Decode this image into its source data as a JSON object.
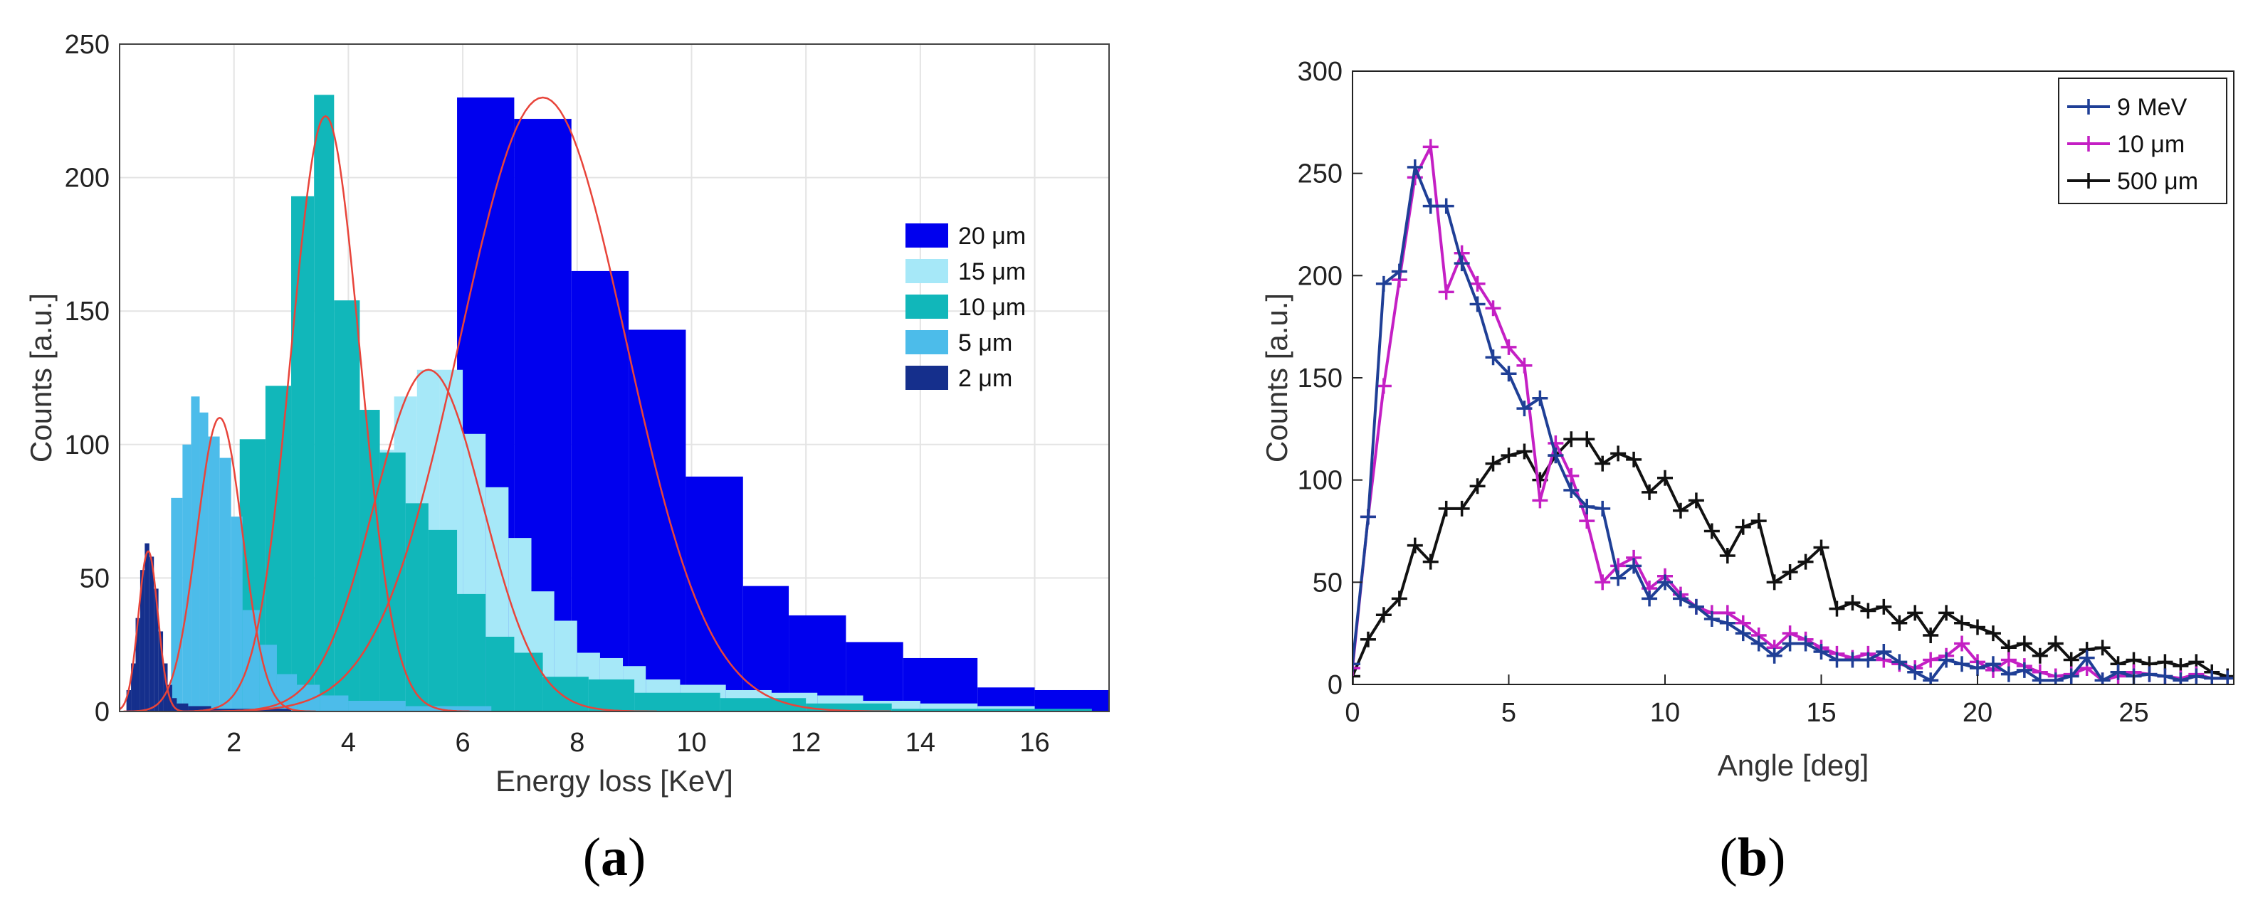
{
  "panels": [
    {
      "label_open": "(",
      "label_letter": "a",
      "label_close": ")"
    },
    {
      "label_open": "(",
      "label_letter": "b",
      "label_close": ")"
    }
  ],
  "chart_data": [
    {
      "type": "bar",
      "subtype": "overlapping step histograms with gaussian fits",
      "xlabel": "Energy loss [KeV]",
      "ylabel": "Counts [a.u.]",
      "xlim": [
        0,
        17.3
      ],
      "ylim": [
        0,
        250
      ],
      "xticks": [
        2,
        4,
        6,
        8,
        10,
        12,
        14,
        16
      ],
      "yticks": [
        0,
        50,
        100,
        150,
        200,
        250
      ],
      "grid": true,
      "legend_position": "right",
      "fit_color": "#e8443a",
      "series": [
        {
          "name": "20 μm",
          "color": "#0000ee",
          "bins": [
            [
              5.9,
              6.9,
              230
            ],
            [
              6.9,
              7.9,
              222
            ],
            [
              7.9,
              8.9,
              165
            ],
            [
              8.9,
              9.9,
              143
            ],
            [
              9.9,
              10.9,
              88
            ],
            [
              10.9,
              11.7,
              47
            ],
            [
              11.7,
              12.7,
              36
            ],
            [
              12.7,
              13.7,
              26
            ],
            [
              13.7,
              15.0,
              20
            ],
            [
              15.0,
              16.0,
              9
            ],
            [
              16.0,
              17.3,
              8
            ]
          ],
          "fit": {
            "mu": 7.4,
            "sigma": 1.45,
            "amp": 230
          }
        },
        {
          "name": "15 μm",
          "color": "#a6e8f8",
          "bins": [
            [
              4.4,
              4.8,
              98
            ],
            [
              4.8,
              5.2,
              118
            ],
            [
              5.2,
              5.6,
              128
            ],
            [
              5.6,
              6.0,
              128
            ],
            [
              6.0,
              6.4,
              104
            ],
            [
              6.4,
              6.8,
              84
            ],
            [
              6.8,
              7.2,
              65
            ],
            [
              7.2,
              7.6,
              45
            ],
            [
              7.6,
              8.0,
              34
            ],
            [
              8.0,
              8.4,
              22
            ],
            [
              8.4,
              8.8,
              20
            ],
            [
              8.8,
              9.2,
              17
            ],
            [
              9.2,
              9.8,
              12
            ],
            [
              9.8,
              10.6,
              10
            ],
            [
              10.6,
              11.4,
              8
            ],
            [
              11.4,
              12.2,
              7
            ],
            [
              12.2,
              13.0,
              6
            ],
            [
              13.0,
              14.0,
              4
            ],
            [
              14.0,
              15.0,
              3
            ],
            [
              15.0,
              16.0,
              2
            ]
          ],
          "fit": {
            "mu": 5.4,
            "sigma": 0.95,
            "amp": 128
          }
        },
        {
          "name": "10 μm",
          "color": "#11b7ba",
          "bins": [
            [
              2.1,
              2.55,
              102
            ],
            [
              2.55,
              3.0,
              122
            ],
            [
              3.0,
              3.4,
              193
            ],
            [
              3.4,
              3.75,
              231
            ],
            [
              3.75,
              4.2,
              154
            ],
            [
              4.2,
              4.55,
              113
            ],
            [
              4.55,
              5.0,
              97
            ],
            [
              5.0,
              5.4,
              78
            ],
            [
              5.4,
              5.9,
              68
            ],
            [
              5.9,
              6.4,
              44
            ],
            [
              6.4,
              6.9,
              28
            ],
            [
              6.9,
              7.4,
              22
            ],
            [
              7.4,
              8.2,
              13
            ],
            [
              8.2,
              9.0,
              12
            ],
            [
              9.0,
              10.5,
              7
            ],
            [
              10.5,
              12.0,
              5
            ],
            [
              12.0,
              13.5,
              3
            ],
            [
              13.5,
              17.0,
              1
            ]
          ],
          "fit": {
            "mu": 3.6,
            "sigma": 0.6,
            "amp": 223
          }
        },
        {
          "name": "5 μm",
          "color": "#4cbcea",
          "bins": [
            [
              0.9,
              1.1,
              80
            ],
            [
              1.1,
              1.25,
              100
            ],
            [
              1.25,
              1.4,
              118
            ],
            [
              1.4,
              1.55,
              112
            ],
            [
              1.55,
              1.75,
              103
            ],
            [
              1.75,
              1.95,
              95
            ],
            [
              1.95,
              2.15,
              73
            ],
            [
              2.15,
              2.45,
              38
            ],
            [
              2.45,
              2.75,
              25
            ],
            [
              2.75,
              3.1,
              14
            ],
            [
              3.1,
              3.5,
              10
            ],
            [
              3.5,
              4.0,
              6
            ],
            [
              4.0,
              5.0,
              4
            ],
            [
              5.0,
              6.5,
              2
            ]
          ],
          "fit": {
            "mu": 1.75,
            "sigma": 0.4,
            "amp": 110
          }
        },
        {
          "name": "2 μm",
          "color": "#152f8c",
          "bins": [
            [
              0.12,
              0.2,
              8
            ],
            [
              0.2,
              0.28,
              18
            ],
            [
              0.28,
              0.36,
              35
            ],
            [
              0.36,
              0.44,
              53
            ],
            [
              0.44,
              0.52,
              63
            ],
            [
              0.52,
              0.6,
              58
            ],
            [
              0.6,
              0.68,
              46
            ],
            [
              0.68,
              0.76,
              30
            ],
            [
              0.76,
              0.84,
              18
            ],
            [
              0.84,
              0.92,
              10
            ],
            [
              0.92,
              1.0,
              5
            ],
            [
              1.0,
              1.2,
              3
            ],
            [
              1.2,
              1.6,
              2
            ],
            [
              1.6,
              3.0,
              1
            ]
          ],
          "fit": {
            "mu": 0.5,
            "sigma": 0.17,
            "amp": 60
          }
        }
      ]
    },
    {
      "type": "line",
      "xlabel": "Angle [deg]",
      "ylabel": "Counts [a.u.]",
      "xlim": [
        0,
        28.2
      ],
      "ylim": [
        0,
        300
      ],
      "xticks": [
        0,
        5,
        10,
        15,
        20,
        25
      ],
      "yticks": [
        0,
        50,
        100,
        150,
        200,
        250,
        300
      ],
      "grid": false,
      "legend_position": "top-right",
      "marker": "+",
      "series": [
        {
          "name": "9 MeV",
          "color": "#1f3f96",
          "x": [
            0,
            0.5,
            1,
            1.5,
            2,
            2.5,
            3,
            3.5,
            4,
            4.5,
            5,
            5.5,
            6,
            6.5,
            7,
            7.5,
            8,
            8.5,
            9,
            9.5,
            10,
            10.5,
            11,
            11.5,
            12,
            12.5,
            13,
            13.5,
            14,
            14.5,
            15,
            15.5,
            16,
            16.5,
            17,
            17.5,
            18,
            18.5,
            19,
            19.5,
            20,
            20.5,
            21,
            21.5,
            22,
            22.5,
            23,
            23.5,
            24,
            24.5,
            25,
            25.5,
            26,
            26.5,
            27,
            27.5,
            28
          ],
          "y": [
            10,
            82,
            196,
            202,
            253,
            234,
            234,
            206,
            186,
            160,
            152,
            135,
            140,
            112,
            95,
            87,
            86,
            52,
            58,
            42,
            50,
            42,
            38,
            32,
            30,
            25,
            20,
            14,
            20,
            20,
            16,
            12,
            12,
            12,
            16,
            11,
            6,
            2,
            12,
            10,
            8,
            10,
            5,
            7,
            2,
            2,
            4,
            13,
            2,
            6,
            4,
            5,
            4,
            2,
            4,
            3,
            3
          ]
        },
        {
          "name": "10 μm",
          "color": "#c41fc4",
          "x": [
            0,
            0.5,
            1,
            1.5,
            2,
            2.5,
            3,
            3.5,
            4,
            4.5,
            5,
            5.5,
            6,
            6.5,
            7,
            7.5,
            8,
            8.5,
            9,
            9.5,
            10,
            10.5,
            11,
            11.5,
            12,
            12.5,
            13,
            13.5,
            14,
            14.5,
            15,
            15.5,
            16,
            16.5,
            17,
            17.5,
            18,
            18.5,
            19,
            19.5,
            20,
            20.5,
            21,
            21.5,
            22,
            22.5,
            23,
            23.5,
            24,
            24.5,
            25,
            25.5,
            26,
            26.5,
            27,
            27.5,
            28
          ],
          "y": [
            8,
            82,
            146,
            198,
            248,
            263,
            192,
            211,
            196,
            184,
            165,
            156,
            90,
            118,
            102,
            80,
            50,
            58,
            62,
            47,
            53,
            44,
            38,
            35,
            35,
            30,
            24,
            18,
            25,
            22,
            18,
            15,
            13,
            15,
            12,
            10,
            8,
            12,
            14,
            20,
            11,
            7,
            12,
            9,
            6,
            4,
            5,
            8,
            2,
            4,
            6,
            5,
            4,
            3,
            5,
            3,
            3
          ]
        },
        {
          "name": "500 μm",
          "color": "#111111",
          "x": [
            0,
            0.5,
            1,
            1.5,
            2,
            2.5,
            3,
            3.5,
            4,
            4.5,
            5,
            5.5,
            6,
            6.5,
            7,
            7.5,
            8,
            8.5,
            9,
            9.5,
            10,
            10.5,
            11,
            11.5,
            12,
            12.5,
            13,
            13.5,
            14,
            14.5,
            15,
            15.5,
            16,
            16.5,
            17,
            17.5,
            18,
            18.5,
            19,
            19.5,
            20,
            20.5,
            21,
            21.5,
            22,
            22.5,
            23,
            23.5,
            24,
            24.5,
            25,
            25.5,
            26,
            26.5,
            27,
            27.5,
            28
          ],
          "y": [
            4,
            22,
            34,
            42,
            68,
            60,
            86,
            86,
            97,
            108,
            112,
            114,
            100,
            112,
            120,
            120,
            108,
            113,
            110,
            94,
            101,
            85,
            90,
            75,
            63,
            77,
            80,
            50,
            55,
            60,
            67,
            37,
            40,
            36,
            38,
            30,
            35,
            24,
            35,
            30,
            28,
            25,
            18,
            20,
            14,
            20,
            12,
            17,
            18,
            10,
            12,
            10,
            11,
            9,
            11,
            6,
            4
          ]
        }
      ]
    }
  ]
}
